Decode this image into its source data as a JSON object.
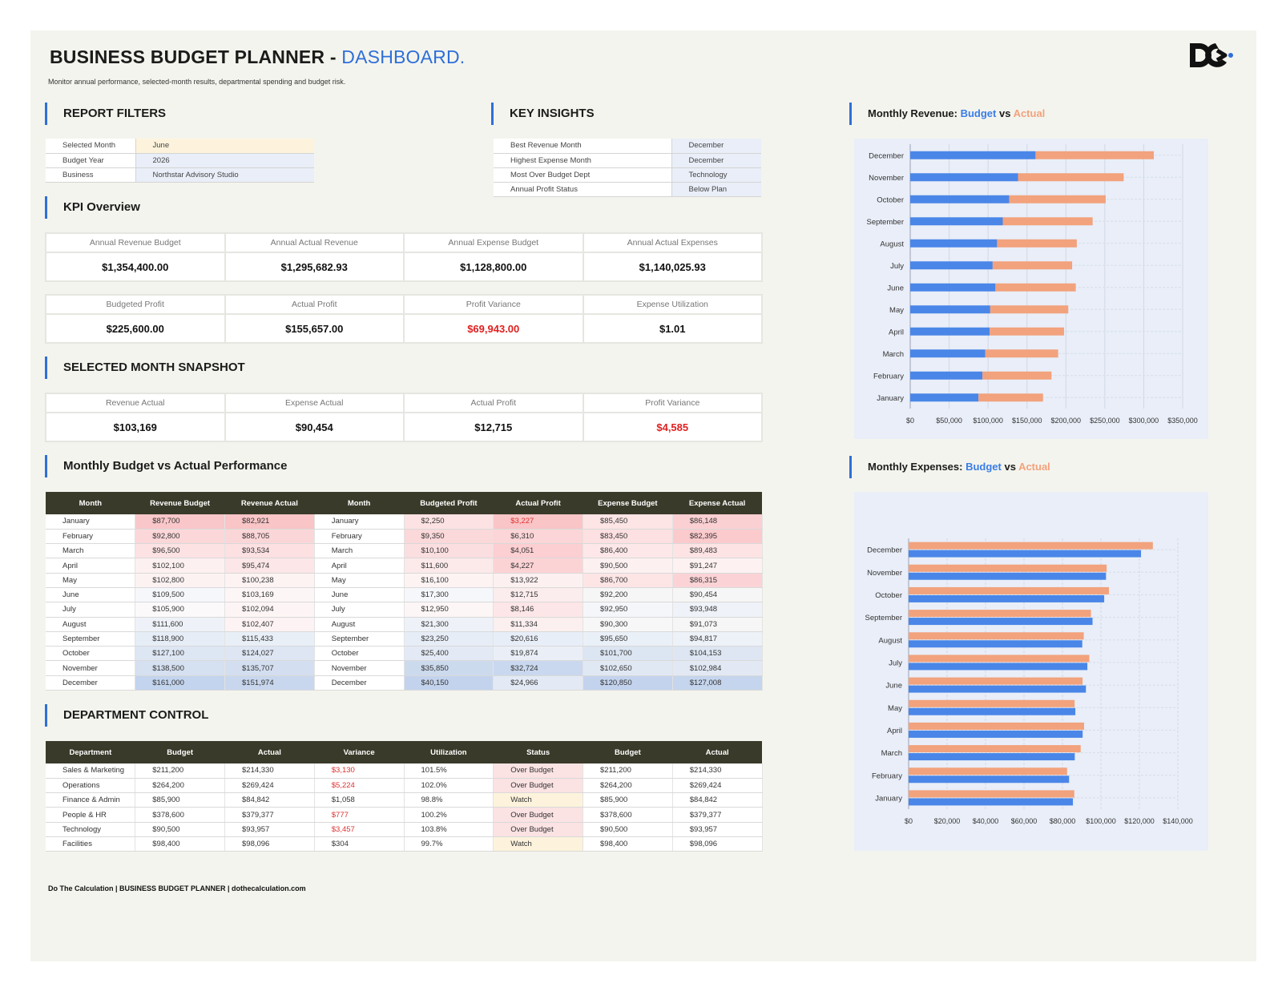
{
  "header": {
    "title": "BUSINESS BUDGET PLANNER - ",
    "title_accent": "DASHBOARD.",
    "subtitle": "Monitor annual performance, selected-month results, departmental spending and budget risk."
  },
  "filters": {
    "heading": "REPORT FILTERS",
    "rows": [
      {
        "label": "Selected Month",
        "value": "June"
      },
      {
        "label": "Budget Year",
        "value": "2026"
      },
      {
        "label": "Business",
        "value": "Northstar Advisory Studio"
      }
    ]
  },
  "insights": {
    "heading": "KEY INSIGHTS",
    "rows": [
      {
        "label": "Best Revenue Month",
        "value": "December"
      },
      {
        "label": "Highest Expense Month",
        "value": "December"
      },
      {
        "label": "Most Over Budget Dept",
        "value": "Technology"
      },
      {
        "label": "Annual Profit Status",
        "value": "Below Plan"
      }
    ]
  },
  "kpi": {
    "heading": "KPI Overview",
    "row1": [
      {
        "label": "Annual Revenue Budget",
        "value": "$1,354,400.00"
      },
      {
        "label": "Annual Actual Revenue",
        "value": "$1,295,682.93"
      },
      {
        "label": "Annual Expense Budget",
        "value": "$1,128,800.00"
      },
      {
        "label": "Annual Actual Expenses",
        "value": "$1,140,025.93"
      }
    ],
    "row2": [
      {
        "label": "Budgeted Profit",
        "value": "$225,600.00"
      },
      {
        "label": "Actual Profit",
        "value": "$155,657.00"
      },
      {
        "label": "Profit Variance",
        "value": "$69,943.00"
      },
      {
        "label": "Expense Utilization",
        "value": "$1.01"
      }
    ]
  },
  "snapshot": {
    "heading": "SELECTED MONTH SNAPSHOT",
    "cells": [
      {
        "label": "Revenue Actual",
        "value": "$103,169"
      },
      {
        "label": "Expense Actual",
        "value": "$90,454"
      },
      {
        "label": "Actual Profit",
        "value": "$12,715"
      },
      {
        "label": "Profit Variance",
        "value": "$4,585"
      }
    ]
  },
  "monthly": {
    "heading": "Monthly Budget vs Actual Performance",
    "headers": [
      "Month",
      "Revenue Budget",
      "Revenue Actual",
      "Month",
      "Budgeted Profit",
      "Actual Profit",
      "Expense Budget",
      "Expense Actual"
    ],
    "rows": [
      [
        "January",
        "$87,700",
        "$82,921",
        "January",
        "$2,250",
        "$3,227",
        "$85,450",
        "$86,148"
      ],
      [
        "February",
        "$92,800",
        "$88,705",
        "February",
        "$9,350",
        "$6,310",
        "$83,450",
        "$82,395"
      ],
      [
        "March",
        "$96,500",
        "$93,534",
        "March",
        "$10,100",
        "$4,051",
        "$86,400",
        "$89,483"
      ],
      [
        "April",
        "$102,100",
        "$95,474",
        "April",
        "$11,600",
        "$4,227",
        "$90,500",
        "$91,247"
      ],
      [
        "May",
        "$102,800",
        "$100,238",
        "May",
        "$16,100",
        "$13,922",
        "$86,700",
        "$86,315"
      ],
      [
        "June",
        "$109,500",
        "$103,169",
        "June",
        "$17,300",
        "$12,715",
        "$92,200",
        "$90,454"
      ],
      [
        "July",
        "$105,900",
        "$102,094",
        "July",
        "$12,950",
        "$8,146",
        "$92,950",
        "$93,948"
      ],
      [
        "August",
        "$111,600",
        "$102,407",
        "August",
        "$21,300",
        "$11,334",
        "$90,300",
        "$91,073"
      ],
      [
        "September",
        "$118,900",
        "$115,433",
        "September",
        "$23,250",
        "$20,616",
        "$95,650",
        "$94,817"
      ],
      [
        "October",
        "$127,100",
        "$124,027",
        "October",
        "$25,400",
        "$19,874",
        "$101,700",
        "$104,153"
      ],
      [
        "November",
        "$138,500",
        "$135,707",
        "November",
        "$35,850",
        "$32,724",
        "$102,650",
        "$102,984"
      ],
      [
        "December",
        "$161,000",
        "$151,974",
        "December",
        "$40,150",
        "$24,966",
        "$120,850",
        "$127,008"
      ]
    ],
    "negative_cells": [
      [
        0,
        5
      ]
    ],
    "cell_colors": [
      [
        "",
        "#f9c7c9",
        "#f9c5c7",
        "",
        "#fde2e3",
        "#f9c5c7",
        "#fde4e5",
        "#fbd0d3"
      ],
      [
        "",
        "#fbd7d9",
        "#fbd6d8",
        "",
        "#fbd8da",
        "#fbd5d7",
        "#fde0e1",
        "#fbcacd"
      ],
      [
        "",
        "#fde2e3",
        "#fce0e2",
        "",
        "#fbdee0",
        "#fccfd2",
        "#fde7e8",
        "#fde3e4"
      ],
      [
        "",
        "#fdf0f0",
        "#fce6e7",
        "",
        "#fce9ea",
        "#fcd3d5",
        "#fdf0f1",
        "#fdf1f1"
      ],
      [
        "",
        "#fdf2f2",
        "#fdf3f3",
        "",
        "#fdf3f3",
        "#fdf0f0",
        "#fde5e6",
        "#fbd3d6"
      ],
      [
        "",
        "#f5f7fb",
        "#fdf6f6",
        "",
        "#f6f7fa",
        "#fbeced",
        "#f7f6f7",
        "#f7f6f6"
      ],
      [
        "",
        "#fbf9f9",
        "#fdf5f5",
        "",
        "#fdf6f6",
        "#fde6e7",
        "#f5f6f9",
        "#eff2f8"
      ],
      [
        "",
        "#eef2f8",
        "#fdf3f4",
        "",
        "#eef2f8",
        "#fbeff0",
        "#f8f7f8",
        "#f7f6f7"
      ],
      [
        "",
        "#e6edf6",
        "#e9eff7",
        "",
        "#e7edf6",
        "#e8eef7",
        "#eaf0f7",
        "#edf1f8"
      ],
      [
        "",
        "#dde6f3",
        "#dee6f3",
        "",
        "#e3eaf5",
        "#eaeff7",
        "#dce5f2",
        "#dde6f2"
      ],
      [
        "",
        "#d5e0f1",
        "#d3dff0",
        "",
        "#ccdaee",
        "#c9d8ee",
        "#e0e8f4",
        "#e2e9f4"
      ],
      [
        "",
        "#c3d4ee",
        "#c8d7ee",
        "",
        "#c3d3ed",
        "#e3eaf5",
        "#c3d3ed",
        "#c5d5ed"
      ]
    ]
  },
  "department": {
    "heading": "DEPARTMENT CONTROL",
    "headers": [
      "Department",
      "Budget",
      "Actual",
      "Variance",
      "Utilization",
      "Status",
      "Budget",
      "Actual"
    ],
    "rows": [
      [
        "Sales & Marketing",
        "$211,200",
        "$214,330",
        "$3,130",
        "101.5%",
        "Over Budget",
        "$211,200",
        "$214,330"
      ],
      [
        "Operations",
        "$264,200",
        "$269,424",
        "$5,224",
        "102.0%",
        "Over Budget",
        "$264,200",
        "$269,424"
      ],
      [
        "Finance & Admin",
        "$85,900",
        "$84,842",
        "$1,058",
        "98.8%",
        "Watch",
        "$85,900",
        "$84,842"
      ],
      [
        "People & HR",
        "$378,600",
        "$379,377",
        "$777",
        "100.2%",
        "Over Budget",
        "$378,600",
        "$379,377"
      ],
      [
        "Technology",
        "$90,500",
        "$93,957",
        "$3,457",
        "103.8%",
        "Over Budget",
        "$90,500",
        "$93,957"
      ],
      [
        "Facilities",
        "$98,400",
        "$98,096",
        "$304",
        "99.7%",
        "Watch",
        "$98,400",
        "$98,096"
      ]
    ],
    "negative_cells": [
      [
        0,
        3
      ],
      [
        1,
        3
      ],
      [
        3,
        3
      ],
      [
        4,
        3
      ]
    ],
    "status_colors": {
      "Over Budget": "#fbe2e3",
      "Watch": "#fdf3dc"
    }
  },
  "revenue_chart": {
    "title_prefix": "Monthly Revenue: ",
    "title_budget": "Budget",
    "title_vs": " vs ",
    "title_actual": "Actual"
  },
  "expenses_chart": {
    "title_prefix": "Monthly Expenses: ",
    "title_budget": "Budget",
    "title_vs": " vs ",
    "title_actual": "Actual"
  },
  "chart_data": [
    {
      "type": "bar",
      "orientation": "horizontal",
      "stacked": true,
      "title": "Monthly Revenue: Budget vs Actual",
      "categories": [
        "January",
        "February",
        "March",
        "April",
        "May",
        "June",
        "July",
        "August",
        "September",
        "October",
        "November",
        "December"
      ],
      "series": [
        {
          "name": "Budget",
          "color": "#4a86e8",
          "values": [
            87700,
            92800,
            96500,
            102100,
            102800,
            109500,
            105900,
            111600,
            118900,
            127100,
            138500,
            161000
          ]
        },
        {
          "name": "Actual",
          "color": "#f2a27c",
          "values": [
            82921,
            88705,
            93534,
            95474,
            100238,
            103169,
            102094,
            102407,
            115433,
            124027,
            135707,
            151974
          ]
        }
      ],
      "xlim": [
        0,
        350000
      ],
      "ticks": [
        "$0",
        "$50,000",
        "$100,000",
        "$150,000",
        "$200,000",
        "$250,000",
        "$300,000",
        "$350,000"
      ]
    },
    {
      "type": "bar",
      "orientation": "horizontal",
      "stacked": false,
      "title": "Monthly Expenses: Budget vs Actual",
      "categories": [
        "January",
        "February",
        "March",
        "April",
        "May",
        "June",
        "July",
        "August",
        "September",
        "October",
        "November",
        "December"
      ],
      "series": [
        {
          "name": "Budget",
          "color": "#4a86e8",
          "values": [
            85450,
            83450,
            86400,
            90500,
            86700,
            92200,
            92950,
            90300,
            95650,
            101700,
            102650,
            120850
          ]
        },
        {
          "name": "Actual",
          "color": "#f2a27c",
          "values": [
            86148,
            82395,
            89483,
            91247,
            86315,
            90454,
            93948,
            91073,
            94817,
            104153,
            102984,
            127008
          ]
        }
      ],
      "xlim": [
        0,
        140000
      ],
      "ticks": [
        "$0",
        "$20,000",
        "$40,000",
        "$60,000",
        "$80,000",
        "$100,000",
        "$120,000",
        "$140,000"
      ]
    }
  ],
  "footer": {
    "text": "Do The Calculation | BUSINESS BUDGET PLANNER | dothecalculation.com"
  }
}
